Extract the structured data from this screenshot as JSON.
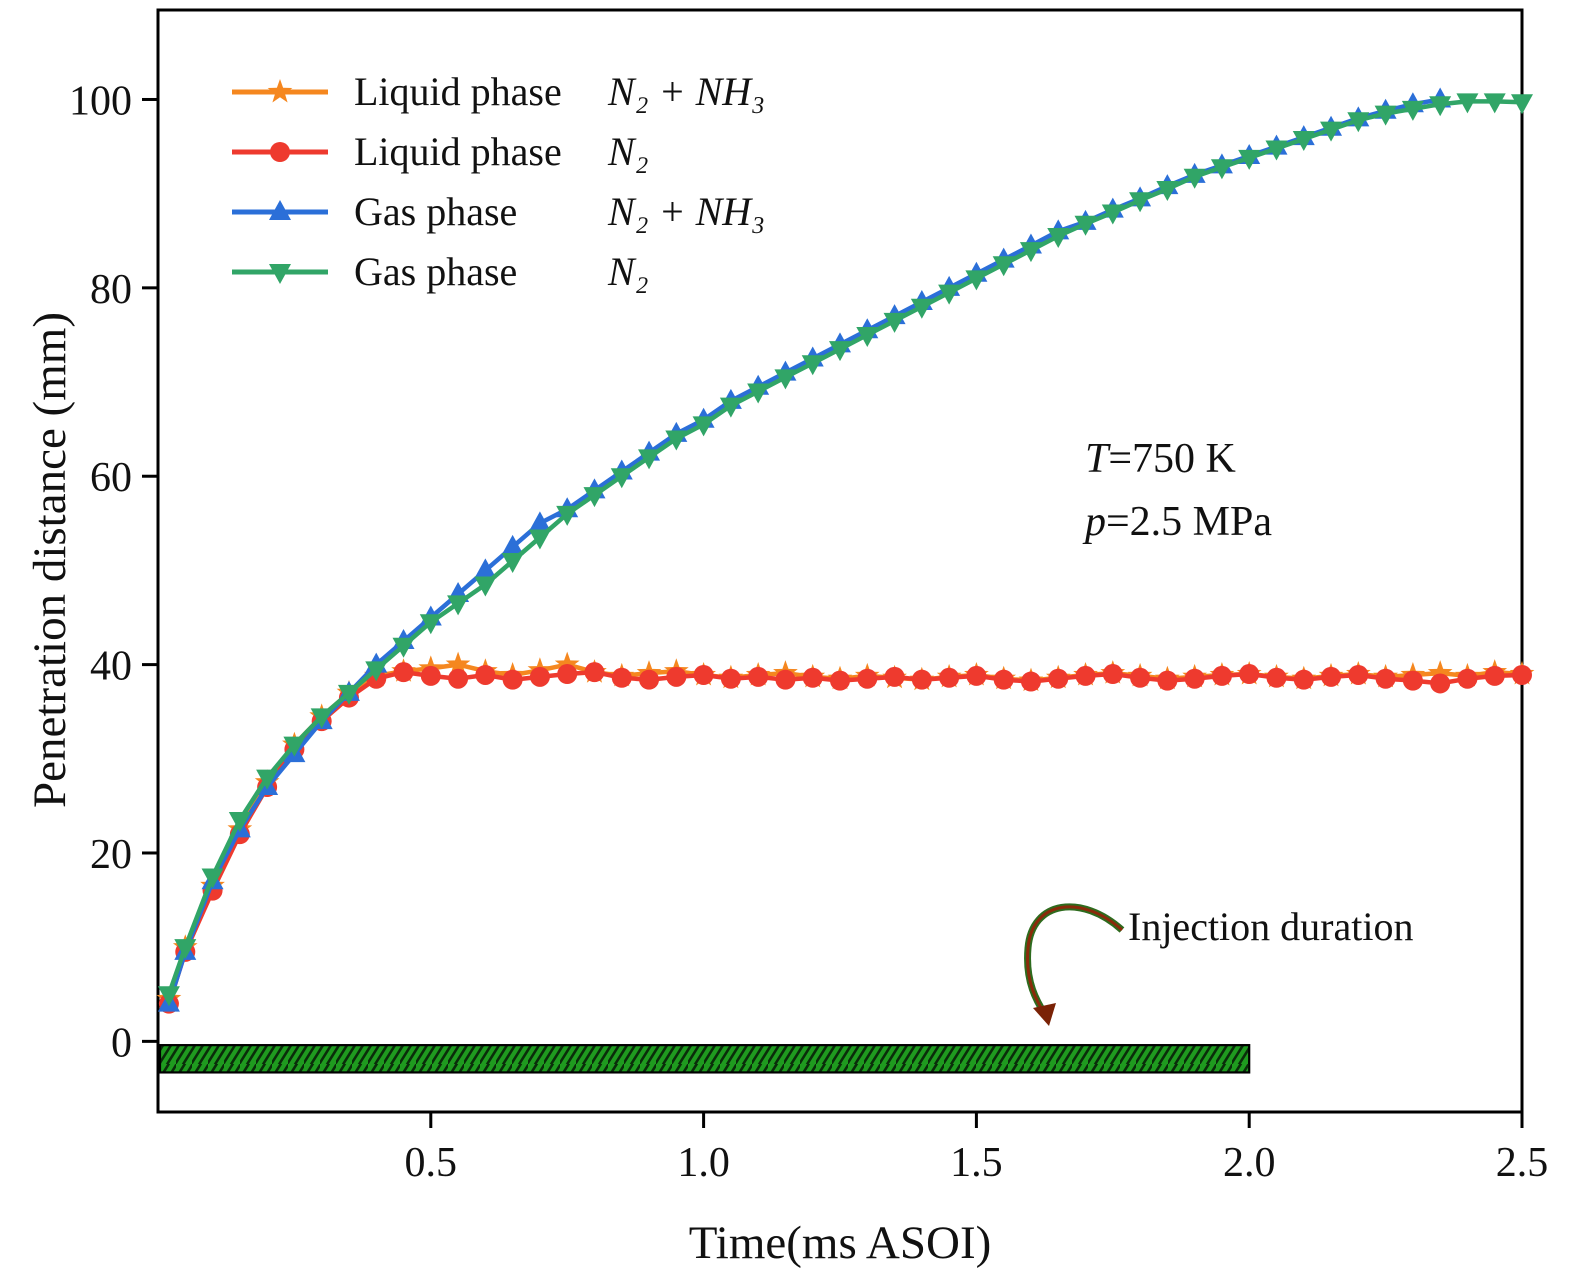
{
  "figure": {
    "conditions": [
      {
        "sym": "T",
        "rest": "=750 K"
      },
      {
        "sym": "p",
        "rest": "=2.5 MPa"
      }
    ],
    "injection_label": "Injection duration"
  },
  "legend": {
    "items": [
      {
        "phase": "Liquid phase",
        "species": "N₂ + NH₃",
        "color": "#f5871f",
        "marker": "star"
      },
      {
        "phase": "Liquid phase",
        "species": "N₂",
        "color": "#ee3a2e",
        "marker": "circle"
      },
      {
        "phase": "Gas phase",
        "species": "N₂ + NH₃",
        "color": "#2b6fd8",
        "marker": "triangle-up"
      },
      {
        "phase": "Gas phase",
        "species": "N₂",
        "color": "#31a567",
        "marker": "triangle-down"
      }
    ]
  },
  "chart_data": {
    "type": "line",
    "title": "",
    "xlabel": "Time(ms ASOI)",
    "ylabel": "Penetration distance (mm)",
    "xlim": [
      0,
      2.5
    ],
    "ylim": [
      -7.5,
      109.5
    ],
    "x_ticks": [
      {
        "v": 0.5,
        "label": "0.5"
      },
      {
        "v": 1.0,
        "label": "1.0"
      },
      {
        "v": 1.5,
        "label": "1.5"
      },
      {
        "v": 2.0,
        "label": "2.0"
      },
      {
        "v": 2.5,
        "label": "2.5"
      }
    ],
    "y_ticks": [
      {
        "v": 0,
        "label": "0"
      },
      {
        "v": 20,
        "label": "20"
      },
      {
        "v": 40,
        "label": "40"
      },
      {
        "v": 60,
        "label": "60"
      },
      {
        "v": 80,
        "label": "80"
      },
      {
        "v": 100,
        "label": "100"
      }
    ],
    "annotations": [
      "T=750 K",
      "p=2.5 MPa",
      "Injection duration"
    ],
    "injection_bar": {
      "x_start": 0.0,
      "x_end": 2.0,
      "y_top": -0.4,
      "y_bottom": -3.3,
      "fill": "#1f9b1f"
    },
    "series": [
      {
        "name": "Liquid phase N₂ + NH₃",
        "color": "#f5871f",
        "marker": "star",
        "x": [
          0.02,
          0.05,
          0.1,
          0.15,
          0.2,
          0.25,
          0.3,
          0.35,
          0.4,
          0.45,
          0.5,
          0.55,
          0.6,
          0.65,
          0.7,
          0.75,
          0.8,
          0.85,
          0.9,
          0.95,
          1.0,
          1.05,
          1.1,
          1.15,
          1.2,
          1.25,
          1.3,
          1.35,
          1.4,
          1.45,
          1.5,
          1.55,
          1.6,
          1.65,
          1.7,
          1.75,
          1.8,
          1.85,
          1.9,
          1.95,
          2.0,
          2.05,
          2.1,
          2.15,
          2.2,
          2.25,
          2.3,
          2.35,
          2.4,
          2.45,
          2.5
        ],
        "y": [
          4.5,
          10,
          16.5,
          22.5,
          27.5,
          31.5,
          34.5,
          37,
          38.8,
          39.3,
          39.6,
          40,
          39.3,
          38.9,
          39.4,
          40,
          39.2,
          38.8,
          39.1,
          39.3,
          38.9,
          38.6,
          38.9,
          39.1,
          38.7,
          38.5,
          38.8,
          38.6,
          38.4,
          38.7,
          38.9,
          38.5,
          38.3,
          38.6,
          38.9,
          39.1,
          38.8,
          38.5,
          38.7,
          38.9,
          39.0,
          38.7,
          38.5,
          38.8,
          39.0,
          38.7,
          38.9,
          39.1,
          38.8,
          39.2,
          39.0
        ]
      },
      {
        "name": "Liquid phase N₂",
        "color": "#ee3a2e",
        "marker": "circle",
        "x": [
          0.02,
          0.05,
          0.1,
          0.15,
          0.2,
          0.25,
          0.3,
          0.35,
          0.4,
          0.45,
          0.5,
          0.55,
          0.6,
          0.65,
          0.7,
          0.75,
          0.8,
          0.85,
          0.9,
          0.95,
          1.0,
          1.05,
          1.1,
          1.15,
          1.2,
          1.25,
          1.3,
          1.35,
          1.4,
          1.45,
          1.5,
          1.55,
          1.6,
          1.65,
          1.7,
          1.75,
          1.8,
          1.85,
          1.9,
          1.95,
          2.0,
          2.05,
          2.1,
          2.15,
          2.2,
          2.25,
          2.3,
          2.35,
          2.4,
          2.45,
          2.5
        ],
        "y": [
          4,
          9.5,
          16,
          22,
          27,
          31,
          34,
          36.5,
          38.5,
          39.2,
          38.8,
          38.5,
          38.9,
          38.4,
          38.7,
          39.0,
          39.2,
          38.6,
          38.4,
          38.7,
          38.9,
          38.5,
          38.7,
          38.4,
          38.6,
          38.3,
          38.5,
          38.7,
          38.4,
          38.6,
          38.8,
          38.4,
          38.2,
          38.5,
          38.8,
          39.0,
          38.6,
          38.3,
          38.5,
          38.8,
          39.0,
          38.6,
          38.4,
          38.7,
          38.9,
          38.5,
          38.3,
          38.0,
          38.5,
          38.8,
          38.9
        ]
      },
      {
        "name": "Gas phase N₂ + NH₃",
        "color": "#2b6fd8",
        "marker": "triangle-up",
        "x": [
          0.02,
          0.05,
          0.1,
          0.15,
          0.2,
          0.25,
          0.3,
          0.35,
          0.4,
          0.45,
          0.5,
          0.55,
          0.6,
          0.65,
          0.7,
          0.75,
          0.8,
          0.85,
          0.9,
          0.95,
          1.0,
          1.05,
          1.1,
          1.15,
          1.2,
          1.25,
          1.3,
          1.35,
          1.4,
          1.45,
          1.5,
          1.55,
          1.6,
          1.65,
          1.7,
          1.75,
          1.8,
          1.85,
          1.9,
          1.95,
          2.0,
          2.05,
          2.1,
          2.15,
          2.2,
          2.25,
          2.3,
          2.35
        ],
        "y": [
          4,
          9.5,
          17,
          22.5,
          27,
          30.5,
          34,
          37,
          40,
          42.5,
          45,
          47.5,
          50,
          52.5,
          55,
          56.5,
          58.5,
          60.5,
          62.5,
          64.5,
          66,
          68,
          69.5,
          71,
          72.5,
          74,
          75.5,
          77,
          78.5,
          80,
          81.5,
          83,
          84.5,
          86,
          87,
          88.3,
          89.5,
          90.8,
          92,
          93,
          94,
          95,
          96,
          97,
          98,
          98.8,
          99.5,
          100
        ]
      },
      {
        "name": "Gas phase N₂",
        "color": "#31a567",
        "marker": "triangle-down",
        "x": [
          0.02,
          0.05,
          0.1,
          0.15,
          0.2,
          0.25,
          0.3,
          0.35,
          0.4,
          0.45,
          0.5,
          0.55,
          0.6,
          0.65,
          0.7,
          0.75,
          0.8,
          0.85,
          0.9,
          0.95,
          1.0,
          1.05,
          1.1,
          1.15,
          1.2,
          1.25,
          1.3,
          1.35,
          1.4,
          1.45,
          1.5,
          1.55,
          1.6,
          1.65,
          1.7,
          1.75,
          1.8,
          1.85,
          1.9,
          1.95,
          2.0,
          2.05,
          2.1,
          2.15,
          2.2,
          2.25,
          2.3,
          2.35,
          2.4,
          2.45,
          2.5
        ],
        "y": [
          5,
          10,
          17.5,
          23.5,
          28,
          31.5,
          34.5,
          37,
          39.5,
          42,
          44.5,
          46.5,
          48.5,
          51,
          53.5,
          56,
          58,
          60,
          62,
          64,
          65.5,
          67.5,
          69,
          70.5,
          72,
          73.5,
          75,
          76.5,
          78,
          79.5,
          81,
          82.5,
          84,
          85.5,
          86.8,
          88,
          89.3,
          90.5,
          91.8,
          92.8,
          93.8,
          94.8,
          95.8,
          96.8,
          97.8,
          98.5,
          99,
          99.5,
          99.8,
          99.8,
          99.7
        ]
      }
    ]
  }
}
